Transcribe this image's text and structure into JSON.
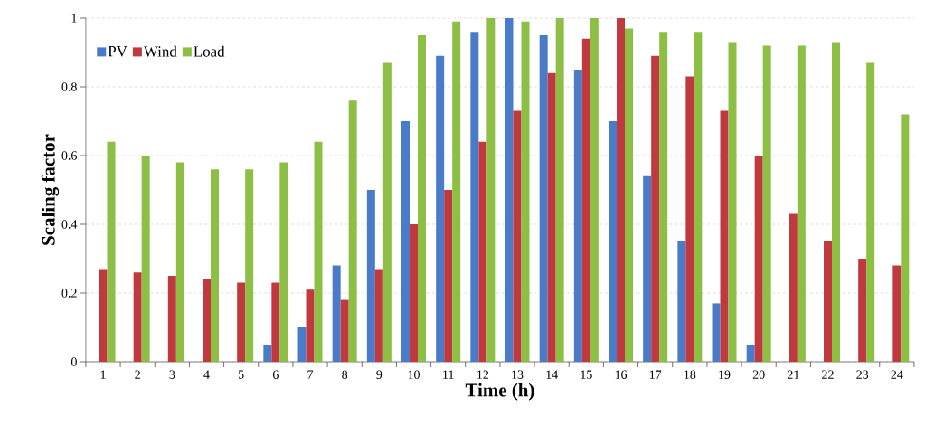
{
  "chart_data": {
    "type": "bar",
    "xlabel": "Time (h)",
    "ylabel": "Scaling factor",
    "categories": [
      "1",
      "2",
      "3",
      "4",
      "5",
      "6",
      "7",
      "8",
      "9",
      "10",
      "11",
      "12",
      "13",
      "14",
      "15",
      "16",
      "17",
      "18",
      "19",
      "20",
      "21",
      "22",
      "23",
      "24"
    ],
    "series": [
      {
        "name": "PV",
        "color": "#4a7bc8",
        "values": [
          0,
          0,
          0,
          0,
          0,
          0.05,
          0.1,
          0.28,
          0.5,
          0.7,
          0.89,
          0.96,
          1.0,
          0.95,
          0.85,
          0.7,
          0.54,
          0.35,
          0.17,
          0.05,
          0,
          0,
          0,
          0
        ]
      },
      {
        "name": "Wind",
        "color": "#c0393f",
        "values": [
          0.27,
          0.26,
          0.25,
          0.24,
          0.23,
          0.23,
          0.21,
          0.18,
          0.27,
          0.4,
          0.5,
          0.64,
          0.73,
          0.84,
          0.94,
          1.0,
          0.89,
          0.83,
          0.73,
          0.6,
          0.43,
          0.35,
          0.3,
          0.28
        ]
      },
      {
        "name": "Load",
        "color": "#8cbf44",
        "values": [
          0.64,
          0.6,
          0.58,
          0.56,
          0.56,
          0.58,
          0.64,
          0.76,
          0.87,
          0.95,
          0.99,
          1.0,
          0.99,
          1.0,
          1.0,
          0.97,
          0.96,
          0.96,
          0.93,
          0.92,
          0.92,
          0.93,
          0.87,
          0.72
        ]
      }
    ],
    "ylim": [
      0,
      1
    ],
    "yticks": [
      0,
      0.2,
      0.4,
      0.6,
      0.8,
      1
    ],
    "grid": "y",
    "legend": "top left"
  }
}
